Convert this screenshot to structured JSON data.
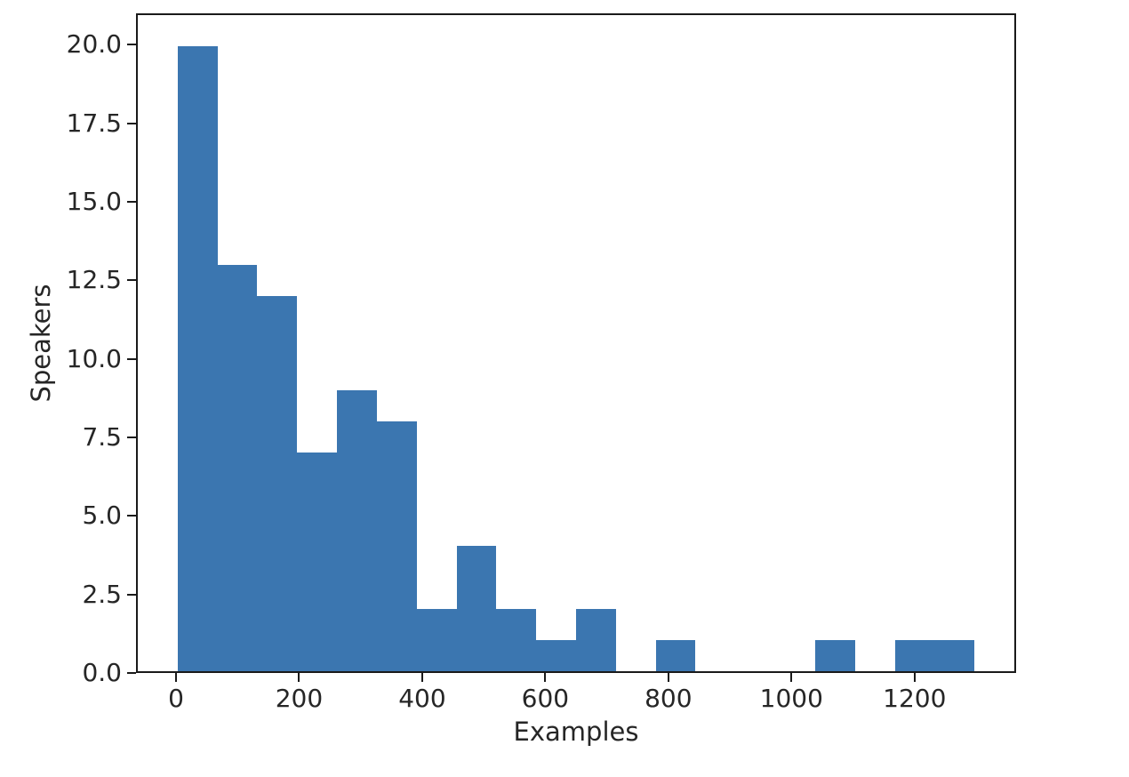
{
  "chart_data": {
    "type": "bar",
    "subtype": "histogram",
    "title": "",
    "xlabel": "Examples",
    "ylabel": "Speakers",
    "bin_edges": [
      0,
      65,
      130,
      195,
      260,
      325,
      390,
      455,
      520,
      585,
      650,
      715,
      780,
      845,
      910,
      975,
      1040,
      1105,
      1170,
      1235,
      1300
    ],
    "counts": [
      20,
      13,
      12,
      7,
      9,
      8,
      2,
      4,
      2,
      1,
      2,
      0,
      1,
      0,
      0,
      0,
      1,
      0,
      1,
      1
    ],
    "xlim": [
      -65,
      1365
    ],
    "ylim": [
      0,
      21
    ],
    "xticks": [
      0,
      200,
      400,
      600,
      800,
      1000,
      1200
    ],
    "xtick_labels": [
      "0",
      "200",
      "400",
      "600",
      "800",
      "1000",
      "1200"
    ],
    "ytick_values": [
      0,
      2.5,
      5,
      7.5,
      10,
      12.5,
      15,
      17.5,
      20
    ],
    "ytick_labels": [
      "0.0",
      "2.5",
      "5.0",
      "7.5",
      "10.0",
      "12.5",
      "15.0",
      "17.5",
      "20.0"
    ],
    "grid": false,
    "legend": null,
    "colors": {
      "bar": "#3b76b0",
      "axis": "#1a1a1a",
      "text": "#262626",
      "background": "#ffffff"
    }
  }
}
